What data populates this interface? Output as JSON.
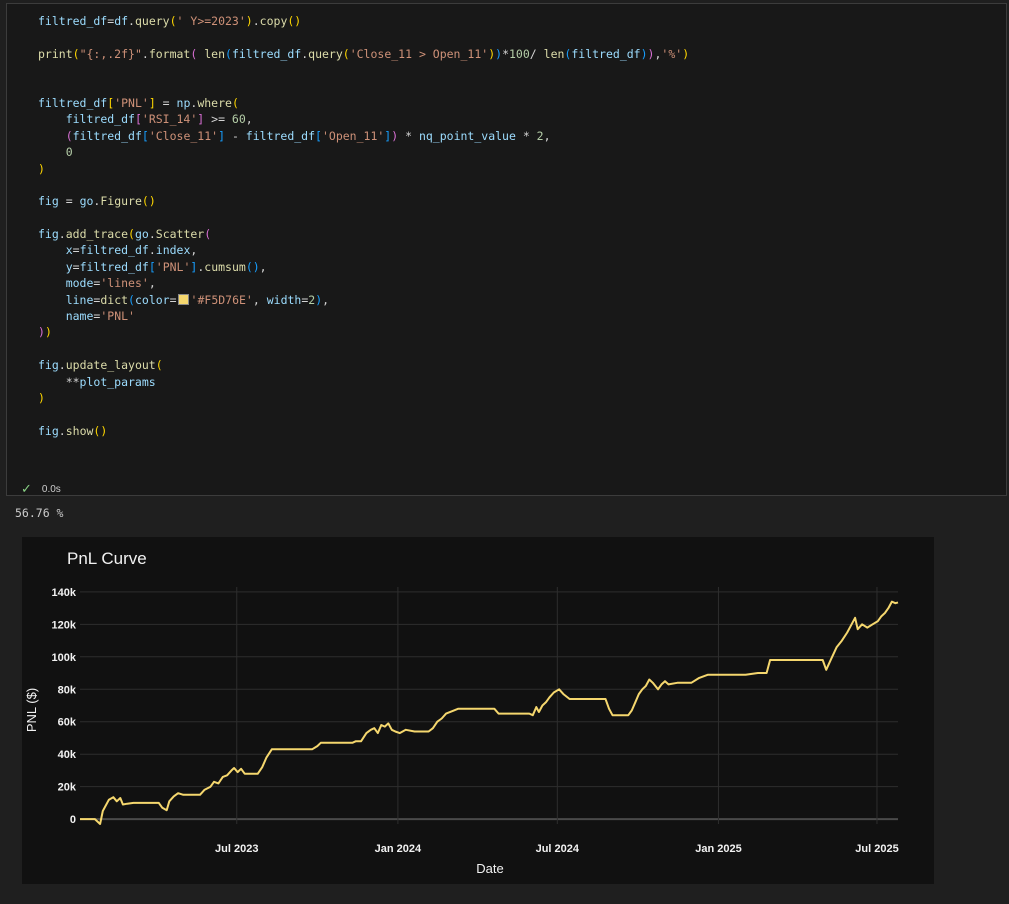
{
  "code_lines": [
    [
      [
        "v",
        "filtred_df"
      ],
      [
        "o",
        "="
      ],
      [
        "v",
        "df"
      ],
      [
        "o",
        "."
      ],
      [
        "f",
        "query"
      ],
      [
        "p1",
        "("
      ],
      [
        "s",
        "' Y>=2023'"
      ],
      [
        "p1",
        ")"
      ],
      [
        "o",
        "."
      ],
      [
        "f",
        "copy"
      ],
      [
        "p1",
        "()"
      ]
    ],
    [],
    [
      [
        "f",
        "print"
      ],
      [
        "p1",
        "("
      ],
      [
        "s",
        "\"{:,.2f}\""
      ],
      [
        "o",
        "."
      ],
      [
        "f",
        "format"
      ],
      [
        "p2",
        "("
      ],
      [
        "o",
        " "
      ],
      [
        "f",
        "len"
      ],
      [
        "p3",
        "("
      ],
      [
        "v",
        "filtred_df"
      ],
      [
        "o",
        "."
      ],
      [
        "f",
        "query"
      ],
      [
        "p1",
        "("
      ],
      [
        "s",
        "'Close_11 > Open_11'"
      ],
      [
        "p1",
        ")"
      ],
      [
        "p3",
        ")"
      ],
      [
        "o",
        "*"
      ],
      [
        "n",
        "100"
      ],
      [
        "o",
        "/ "
      ],
      [
        "f",
        "len"
      ],
      [
        "p3",
        "("
      ],
      [
        "v",
        "filtred_df"
      ],
      [
        "p3",
        ")"
      ],
      [
        "p2",
        ")"
      ],
      [
        "o",
        ","
      ],
      [
        "s",
        "'%'"
      ],
      [
        "p1",
        ")"
      ]
    ],
    [],
    [],
    [
      [
        "v",
        "filtred_df"
      ],
      [
        "p1",
        "["
      ],
      [
        "s",
        "'PNL'"
      ],
      [
        "p1",
        "]"
      ],
      [
        "o",
        " = "
      ],
      [
        "v",
        "np"
      ],
      [
        "o",
        "."
      ],
      [
        "f",
        "where"
      ],
      [
        "p1",
        "("
      ]
    ],
    [
      [
        "o",
        "    "
      ],
      [
        "v",
        "filtred_df"
      ],
      [
        "p2",
        "["
      ],
      [
        "s",
        "'RSI_14'"
      ],
      [
        "p2",
        "]"
      ],
      [
        "o",
        " >= "
      ],
      [
        "n",
        "60"
      ],
      [
        "o",
        ","
      ]
    ],
    [
      [
        "o",
        "    "
      ],
      [
        "p2",
        "("
      ],
      [
        "v",
        "filtred_df"
      ],
      [
        "p3",
        "["
      ],
      [
        "s",
        "'Close_11'"
      ],
      [
        "p3",
        "]"
      ],
      [
        "o",
        " - "
      ],
      [
        "v",
        "filtred_df"
      ],
      [
        "p3",
        "["
      ],
      [
        "s",
        "'Open_11'"
      ],
      [
        "p3",
        "]"
      ],
      [
        "p2",
        ")"
      ],
      [
        "o",
        " * "
      ],
      [
        "v",
        "nq_point_value"
      ],
      [
        "o",
        " * "
      ],
      [
        "n",
        "2"
      ],
      [
        "o",
        ","
      ]
    ],
    [
      [
        "o",
        "    "
      ],
      [
        "n",
        "0"
      ]
    ],
    [
      [
        "p1",
        ")"
      ]
    ],
    [],
    [
      [
        "v",
        "fig"
      ],
      [
        "o",
        " = "
      ],
      [
        "v",
        "go"
      ],
      [
        "o",
        "."
      ],
      [
        "f",
        "Figure"
      ],
      [
        "p1",
        "()"
      ]
    ],
    [],
    [
      [
        "v",
        "fig"
      ],
      [
        "o",
        "."
      ],
      [
        "f",
        "add_trace"
      ],
      [
        "p1",
        "("
      ],
      [
        "v",
        "go"
      ],
      [
        "o",
        "."
      ],
      [
        "f",
        "Scatter"
      ],
      [
        "p2",
        "("
      ]
    ],
    [
      [
        "o",
        "    "
      ],
      [
        "v",
        "x"
      ],
      [
        "o",
        "="
      ],
      [
        "v",
        "filtred_df"
      ],
      [
        "o",
        "."
      ],
      [
        "v",
        "index"
      ],
      [
        "o",
        ","
      ]
    ],
    [
      [
        "o",
        "    "
      ],
      [
        "v",
        "y"
      ],
      [
        "o",
        "="
      ],
      [
        "v",
        "filtred_df"
      ],
      [
        "p3",
        "["
      ],
      [
        "s",
        "'PNL'"
      ],
      [
        "p3",
        "]"
      ],
      [
        "o",
        "."
      ],
      [
        "f",
        "cumsum"
      ],
      [
        "p3",
        "()"
      ],
      [
        "o",
        ","
      ]
    ],
    [
      [
        "o",
        "    "
      ],
      [
        "v",
        "mode"
      ],
      [
        "o",
        "="
      ],
      [
        "s",
        "'lines'"
      ],
      [
        "o",
        ","
      ]
    ],
    [
      [
        "o",
        "    "
      ],
      [
        "v",
        "line"
      ],
      [
        "o",
        "="
      ],
      [
        "f",
        "dict"
      ],
      [
        "p3",
        "("
      ],
      [
        "v",
        "color"
      ],
      [
        "o",
        "="
      ],
      [
        "sw",
        ""
      ],
      [
        "s",
        "'#F5D76E'"
      ],
      [
        "o",
        ", "
      ],
      [
        "v",
        "width"
      ],
      [
        "o",
        "="
      ],
      [
        "n",
        "2"
      ],
      [
        "p3",
        ")"
      ],
      [
        "o",
        ","
      ]
    ],
    [
      [
        "o",
        "    "
      ],
      [
        "v",
        "name"
      ],
      [
        "o",
        "="
      ],
      [
        "s",
        "'PNL'"
      ]
    ],
    [
      [
        "p2",
        ")"
      ],
      [
        "p1",
        ")"
      ]
    ],
    [],
    [
      [
        "v",
        "fig"
      ],
      [
        "o",
        "."
      ],
      [
        "f",
        "update_layout"
      ],
      [
        "p1",
        "("
      ]
    ],
    [
      [
        "o",
        "    **"
      ],
      [
        "v",
        "plot_params"
      ]
    ],
    [
      [
        "p1",
        ")"
      ]
    ],
    [],
    [
      [
        "v",
        "fig"
      ],
      [
        "o",
        "."
      ],
      [
        "f",
        "show"
      ],
      [
        "p1",
        "()"
      ]
    ]
  ],
  "cell_status": {
    "time": "0.0s"
  },
  "output_text": "56.76 %",
  "colors": {
    "line": "#F5D76E",
    "chart_bg": "#111111",
    "grid": "#2e2e2e"
  },
  "chart_data": {
    "type": "line",
    "title": "PnL Curve",
    "xlabel": "Date",
    "ylabel": "PNL ($)",
    "x_tick_labels": [
      "Jul 2023",
      "Jan 2024",
      "Jul 2024",
      "Jan 2025",
      "Jul 2025"
    ],
    "y_tick_labels": [
      "0",
      "20k",
      "40k",
      "60k",
      "80k",
      "100k",
      "120k",
      "140k"
    ],
    "ylim": [
      -3000,
      143000
    ],
    "xlim": [
      "2023-01-03",
      "2025-07-25"
    ],
    "grid": true,
    "series": [
      {
        "name": "PNL",
        "color": "#F5D76E",
        "points": [
          [
            "2023-01-03",
            0
          ],
          [
            "2023-01-20",
            0
          ],
          [
            "2023-01-26",
            -3000
          ],
          [
            "2023-01-29",
            5000
          ],
          [
            "2023-02-05",
            12000
          ],
          [
            "2023-02-10",
            13500
          ],
          [
            "2023-02-14",
            11000
          ],
          [
            "2023-02-18",
            13000
          ],
          [
            "2023-02-21",
            9000
          ],
          [
            "2023-02-26",
            9500
          ],
          [
            "2023-03-05",
            10000
          ],
          [
            "2023-04-03",
            10000
          ],
          [
            "2023-04-07",
            7000
          ],
          [
            "2023-04-12",
            5500
          ],
          [
            "2023-04-15",
            11000
          ],
          [
            "2023-04-20",
            14000
          ],
          [
            "2023-04-25",
            16000
          ],
          [
            "2023-05-01",
            15000
          ],
          [
            "2023-05-20",
            15000
          ],
          [
            "2023-05-25",
            18000
          ],
          [
            "2023-06-01",
            20000
          ],
          [
            "2023-06-05",
            23000
          ],
          [
            "2023-06-10",
            22000
          ],
          [
            "2023-06-15",
            26000
          ],
          [
            "2023-06-20",
            27000
          ],
          [
            "2023-06-25",
            30000
          ],
          [
            "2023-06-28",
            31500
          ],
          [
            "2023-07-02",
            29000
          ],
          [
            "2023-07-06",
            31000
          ],
          [
            "2023-07-10",
            28000
          ],
          [
            "2023-07-25",
            28000
          ],
          [
            "2023-07-30",
            32000
          ],
          [
            "2023-08-04",
            38000
          ],
          [
            "2023-08-10",
            43000
          ],
          [
            "2023-09-25",
            43000
          ],
          [
            "2023-10-01",
            45000
          ],
          [
            "2023-10-05",
            47000
          ],
          [
            "2023-11-10",
            47000
          ],
          [
            "2023-11-14",
            48000
          ],
          [
            "2023-11-20",
            48000
          ],
          [
            "2023-11-26",
            53000
          ],
          [
            "2023-12-01",
            55000
          ],
          [
            "2023-12-05",
            56000
          ],
          [
            "2023-12-09",
            53000
          ],
          [
            "2023-12-13",
            58000
          ],
          [
            "2023-12-17",
            57000
          ],
          [
            "2023-12-21",
            59000
          ],
          [
            "2023-12-25",
            55000
          ],
          [
            "2023-12-29",
            54000
          ],
          [
            "2024-01-03",
            53000
          ],
          [
            "2024-01-10",
            55000
          ],
          [
            "2024-01-20",
            54000
          ],
          [
            "2024-02-05",
            54000
          ],
          [
            "2024-02-10",
            56000
          ],
          [
            "2024-02-15",
            60000
          ],
          [
            "2024-02-20",
            62000
          ],
          [
            "2024-02-25",
            65000
          ],
          [
            "2024-03-05",
            67000
          ],
          [
            "2024-03-10",
            68000
          ],
          [
            "2024-04-20",
            68000
          ],
          [
            "2024-04-25",
            65000
          ],
          [
            "2024-05-30",
            65000
          ],
          [
            "2024-06-03",
            64000
          ],
          [
            "2024-06-07",
            69000
          ],
          [
            "2024-06-10",
            66000
          ],
          [
            "2024-06-14",
            70000
          ],
          [
            "2024-06-18",
            72000
          ],
          [
            "2024-06-22",
            75000
          ],
          [
            "2024-06-27",
            78000
          ],
          [
            "2024-07-03",
            80000
          ],
          [
            "2024-07-08",
            77000
          ],
          [
            "2024-07-15",
            74000
          ],
          [
            "2024-08-25",
            74000
          ],
          [
            "2024-08-29",
            68000
          ],
          [
            "2024-09-02",
            64000
          ],
          [
            "2024-09-20",
            64000
          ],
          [
            "2024-09-24",
            67000
          ],
          [
            "2024-09-28",
            72000
          ],
          [
            "2024-10-02",
            77000
          ],
          [
            "2024-10-06",
            80000
          ],
          [
            "2024-10-10",
            82000
          ],
          [
            "2024-10-14",
            86000
          ],
          [
            "2024-10-18",
            84000
          ],
          [
            "2024-10-24",
            80000
          ],
          [
            "2024-10-28",
            83000
          ],
          [
            "2024-11-01",
            85000
          ],
          [
            "2024-11-05",
            83000
          ],
          [
            "2024-11-15",
            84000
          ],
          [
            "2024-12-01",
            84000
          ],
          [
            "2024-12-10",
            87000
          ],
          [
            "2024-12-20",
            89000
          ],
          [
            "2025-02-01",
            89000
          ],
          [
            "2025-02-15",
            90000
          ],
          [
            "2025-02-25",
            90000
          ],
          [
            "2025-03-01",
            98000
          ],
          [
            "2025-04-30",
            98000
          ],
          [
            "2025-05-04",
            92000
          ],
          [
            "2025-05-10",
            99000
          ],
          [
            "2025-05-16",
            106000
          ],
          [
            "2025-05-22",
            110000
          ],
          [
            "2025-05-28",
            115000
          ],
          [
            "2025-06-02",
            120000
          ],
          [
            "2025-06-06",
            124000
          ],
          [
            "2025-06-09",
            117000
          ],
          [
            "2025-06-14",
            120000
          ],
          [
            "2025-06-20",
            118000
          ],
          [
            "2025-06-26",
            120000
          ],
          [
            "2025-07-02",
            122000
          ],
          [
            "2025-07-06",
            125000
          ],
          [
            "2025-07-10",
            127000
          ],
          [
            "2025-07-14",
            130000
          ],
          [
            "2025-07-18",
            134000
          ],
          [
            "2025-07-22",
            133000
          ],
          [
            "2025-07-25",
            133500
          ]
        ]
      }
    ]
  }
}
